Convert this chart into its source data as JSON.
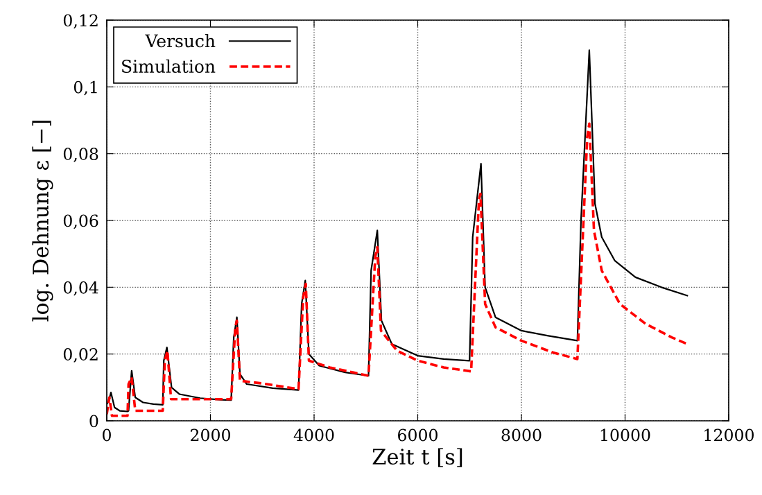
{
  "chart_data": {
    "type": "line",
    "xlabel": "Zeit t [s]",
    "ylabel": "log. Dehnung ε [−]",
    "xlim": [
      0,
      12000
    ],
    "ylim": [
      0,
      0.12
    ],
    "xticks": [
      0,
      2000,
      4000,
      6000,
      8000,
      10000,
      12000
    ],
    "yticks": [
      {
        "value": 0,
        "label": "0"
      },
      {
        "value": 0.02,
        "label": "0,02"
      },
      {
        "value": 0.04,
        "label": "0,04"
      },
      {
        "value": 0.06,
        "label": "0,06"
      },
      {
        "value": 0.08,
        "label": "0,08"
      },
      {
        "value": 0.1,
        "label": "0,1"
      },
      {
        "value": 0.12,
        "label": "0,12"
      }
    ],
    "grid": true,
    "legend": "top left",
    "marker": "none",
    "series": [
      {
        "name": "Versuch",
        "color": "#000000",
        "line_style": "solid",
        "x": [
          0,
          40,
          80,
          150,
          250,
          400,
          420,
          480,
          550,
          700,
          900,
          1080,
          1100,
          1160,
          1250,
          1400,
          1800,
          2200,
          2400,
          2450,
          2510,
          2570,
          2700,
          3200,
          3700,
          3760,
          3830,
          3900,
          4100,
          4600,
          5050,
          5100,
          5220,
          5300,
          5500,
          6000,
          6500,
          7000,
          7060,
          7220,
          7300,
          7500,
          8000,
          8500,
          9080,
          9150,
          9310,
          9420,
          9550,
          9800,
          10200,
          10700,
          11200
        ],
        "values": [
          0.005,
          0.006,
          0.0085,
          0.004,
          0.003,
          0.0028,
          0.003,
          0.015,
          0.007,
          0.0055,
          0.005,
          0.0048,
          0.018,
          0.022,
          0.01,
          0.008,
          0.0068,
          0.0063,
          0.0062,
          0.025,
          0.031,
          0.014,
          0.011,
          0.0098,
          0.0092,
          0.035,
          0.042,
          0.02,
          0.0165,
          0.0145,
          0.0135,
          0.045,
          0.057,
          0.03,
          0.023,
          0.0195,
          0.0185,
          0.018,
          0.055,
          0.077,
          0.04,
          0.031,
          0.027,
          0.0255,
          0.024,
          0.06,
          0.111,
          0.065,
          0.055,
          0.048,
          0.043,
          0.04,
          0.0375
        ]
      },
      {
        "name": "Simulation",
        "color": "#ff0000",
        "line_style": "dashed",
        "x": [
          0,
          50,
          100,
          400,
          420,
          480,
          550,
          1080,
          1120,
          1170,
          1240,
          2400,
          2480,
          2510,
          2570,
          3000,
          3700,
          3790,
          3840,
          3900,
          4300,
          5050,
          5180,
          5220,
          5290,
          5600,
          6000,
          6500,
          7030,
          7180,
          7210,
          7300,
          7500,
          8000,
          8600,
          9080,
          9270,
          9310,
          9400,
          9550,
          9900,
          10400,
          10900,
          11200
        ],
        "values": [
          0.002,
          0.007,
          0.0015,
          0.0015,
          0.011,
          0.013,
          0.003,
          0.003,
          0.018,
          0.021,
          0.0065,
          0.0065,
          0.028,
          0.03,
          0.012,
          0.0112,
          0.0095,
          0.037,
          0.041,
          0.018,
          0.016,
          0.0135,
          0.049,
          0.052,
          0.027,
          0.021,
          0.018,
          0.016,
          0.0148,
          0.066,
          0.068,
          0.035,
          0.028,
          0.024,
          0.0205,
          0.0185,
          0.085,
          0.089,
          0.057,
          0.045,
          0.035,
          0.029,
          0.025,
          0.023
        ]
      }
    ]
  }
}
